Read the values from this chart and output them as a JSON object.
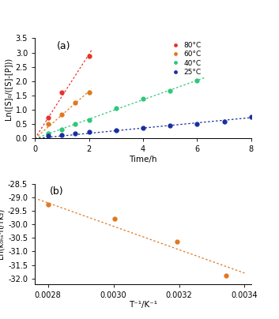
{
  "panel_a": {
    "label": "(a)",
    "series": [
      {
        "label": "80°C",
        "color": "#e8312a",
        "x": [
          0.5,
          1.0,
          2.0
        ],
        "y": [
          0.72,
          1.6,
          2.88
        ]
      },
      {
        "label": "60°C",
        "color": "#e07820",
        "x": [
          0.5,
          1.0,
          1.5,
          2.0
        ],
        "y": [
          0.5,
          0.85,
          1.25,
          1.6
        ]
      },
      {
        "label": "40°C",
        "color": "#2ec87a",
        "x": [
          0.5,
          1.0,
          1.5,
          2.0,
          3.0,
          4.0,
          5.0,
          6.0
        ],
        "y": [
          0.18,
          0.32,
          0.5,
          0.65,
          1.05,
          1.38,
          1.68,
          2.02
        ]
      },
      {
        "label": "25°C",
        "color": "#1a2ea0",
        "x": [
          0.5,
          1.0,
          1.5,
          2.0,
          3.0,
          4.0,
          5.0,
          6.0,
          7.0,
          8.0
        ],
        "y": [
          0.1,
          0.13,
          0.18,
          0.22,
          0.3,
          0.38,
          0.45,
          0.52,
          0.6,
          0.75
        ]
      }
    ],
    "xlabel": "Time/h",
    "ylabel": "Ln([S]₀/([S]-[P]))",
    "xlim": [
      0,
      8
    ],
    "ylim": [
      0.0,
      3.5
    ],
    "xticks": [
      0,
      2,
      4,
      6,
      8
    ],
    "yticks": [
      0.0,
      0.5,
      1.0,
      1.5,
      2.0,
      2.5,
      3.0,
      3.5
    ]
  },
  "panel_b": {
    "label": "(b)",
    "series": [
      {
        "color": "#e07820",
        "x": [
          0.002801,
          0.003003,
          0.003195,
          0.003344
        ],
        "y": [
          -29.28,
          -29.78,
          -30.65,
          -31.9
        ]
      }
    ],
    "fit_x": [
      0.00277,
      0.0034
    ],
    "fit_y": [
      -29.08,
      -31.8
    ],
    "xlabel": "T⁻¹/K⁻¹",
    "ylabel": "Ln(k₀ₕₛ·h/Tk₂)",
    "xlim": [
      0.00276,
      0.00342
    ],
    "ylim": [
      -32.2,
      -28.5
    ],
    "xticks": [
      0.0028,
      0.003,
      0.0032,
      0.0034
    ],
    "yticks": [
      -32.0,
      -31.5,
      -31.0,
      -30.5,
      -30.0,
      -29.5,
      -29.0,
      -28.5
    ]
  },
  "bg_color": "#ffffff"
}
